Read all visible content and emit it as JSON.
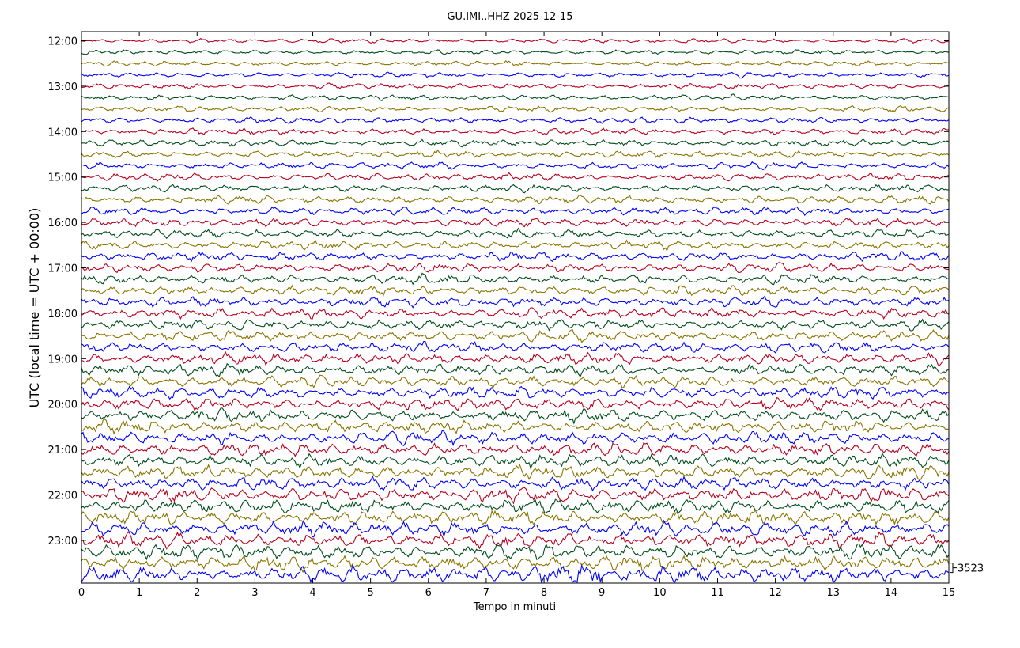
{
  "chart_data": {
    "type": "line",
    "title": "GU.IMI..HHZ 2025-12-15",
    "xlabel": "Tempo in minuti",
    "ylabel": "UTC (local time = UTC + 00:00)",
    "xlim": [
      0,
      15
    ],
    "x_ticks": [
      "0",
      "1",
      "2",
      "3",
      "4",
      "5",
      "6",
      "7",
      "8",
      "9",
      "10",
      "11",
      "12",
      "13",
      "14",
      "15"
    ],
    "y_ticks": [
      "12:00",
      "13:00",
      "14:00",
      "15:00",
      "16:00",
      "17:00",
      "18:00",
      "19:00",
      "20:00",
      "21:00",
      "22:00",
      "23:00"
    ],
    "trace_start": "12:00",
    "trace_interval_minutes": 15,
    "trace_count": 48,
    "trace_colors": [
      "#b8001f",
      "#004d1a",
      "#8a7400",
      "#0000ff"
    ],
    "scale_label": "3523",
    "grid": false,
    "legend": "none"
  }
}
